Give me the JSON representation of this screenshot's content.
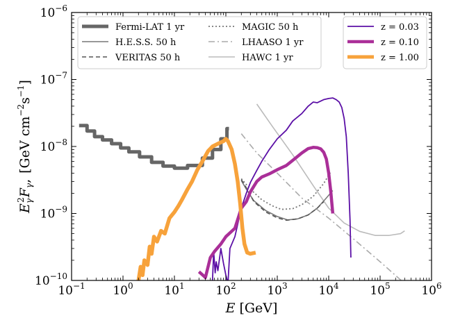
{
  "chart_data": {
    "type": "line",
    "xlabel_main": "E",
    "xlabel_unit": "[GeV]",
    "ylabel_main": "E",
    "ylabel_unit": "[GeV cm",
    "ylabel_unit2": "s",
    "ylabel_close": "]",
    "xscale": "log",
    "yscale": "log",
    "xlim": [
      0.1,
      1000000
    ],
    "ylim": [
      1e-10,
      1e-06
    ],
    "grid": false,
    "x_ticks": [
      {
        "value": 0.1,
        "base": "10",
        "exp": "−1"
      },
      {
        "value": 1,
        "base": "10",
        "exp": "0"
      },
      {
        "value": 10,
        "base": "10",
        "exp": "1"
      },
      {
        "value": 100,
        "base": "10",
        "exp": "2"
      },
      {
        "value": 1000,
        "base": "10",
        "exp": "3"
      },
      {
        "value": 10000,
        "base": "10",
        "exp": "4"
      },
      {
        "value": 100000,
        "base": "10",
        "exp": "5"
      },
      {
        "value": 1000000,
        "base": "10",
        "exp": "6"
      }
    ],
    "y_ticks": [
      {
        "value": 1e-10,
        "base": "10",
        "exp": "−10"
      },
      {
        "value": 1e-09,
        "base": "10",
        "exp": "−9"
      },
      {
        "value": 1e-08,
        "base": "10",
        "exp": "−8"
      },
      {
        "value": 1e-07,
        "base": "10",
        "exp": "−7"
      },
      {
        "value": 1e-06,
        "base": "10",
        "exp": "−6"
      }
    ],
    "legend_left": [
      {
        "label": "Fermi-LAT 1 yr",
        "series": "fermi"
      },
      {
        "label": "H.E.S.S. 50 h",
        "series": "hess"
      },
      {
        "label": "VERITAS 50 h",
        "series": "veritas"
      },
      {
        "label": "MAGIC 50 h",
        "series": "magic"
      },
      {
        "label": "LHAASO 1 yr",
        "series": "lhaaso"
      },
      {
        "label": "HAWC 1 yr",
        "series": "hawc"
      }
    ],
    "legend_right": [
      {
        "label": "z = 0.03",
        "series": "z003"
      },
      {
        "label": "z = 0.10",
        "series": "z010"
      },
      {
        "label": "z = 1.00",
        "series": "z100"
      }
    ],
    "series": [
      {
        "key": "fermi",
        "color": "#666666",
        "width": 5,
        "dash": "",
        "step": true,
        "points": [
          [
            0.14,
            2.05e-08
          ],
          [
            0.2,
            2.05e-08
          ],
          [
            0.2,
            1.7e-08
          ],
          [
            0.28,
            1.7e-08
          ],
          [
            0.28,
            1.4e-08
          ],
          [
            0.4,
            1.4e-08
          ],
          [
            0.4,
            1.25e-08
          ],
          [
            0.6,
            1.25e-08
          ],
          [
            0.6,
            1.1e-08
          ],
          [
            0.9,
            1.1e-08
          ],
          [
            0.9,
            9.5e-09
          ],
          [
            1.3,
            9.5e-09
          ],
          [
            1.3,
            8.3e-09
          ],
          [
            2.1,
            8.3e-09
          ],
          [
            2.1,
            7e-09
          ],
          [
            3.6,
            7e-09
          ],
          [
            3.6,
            5.8e-09
          ],
          [
            6,
            5.8e-09
          ],
          [
            6,
            5.1e-09
          ],
          [
            10,
            5.1e-09
          ],
          [
            10,
            4.75e-09
          ],
          [
            18,
            4.75e-09
          ],
          [
            18,
            5.2e-09
          ],
          [
            35,
            5.2e-09
          ],
          [
            35,
            6.7e-09
          ],
          [
            55,
            6.7e-09
          ],
          [
            55,
            9e-09
          ],
          [
            80,
            9e-09
          ],
          [
            80,
            1.3e-08
          ],
          [
            105,
            1.3e-08
          ],
          [
            105,
            1.85e-08
          ],
          [
            115,
            1.85e-08
          ]
        ]
      },
      {
        "key": "hess",
        "color": "#777777",
        "width": 1.6,
        "dash": "",
        "points": [
          [
            200,
            3.1e-09
          ],
          [
            250,
            2.3e-09
          ],
          [
            350,
            1.55e-09
          ],
          [
            600,
            1.1e-09
          ],
          [
            1000,
            9e-10
          ],
          [
            1600,
            8e-10
          ],
          [
            2500,
            8.3e-10
          ],
          [
            4000,
            9.5e-10
          ],
          [
            6000,
            1.2e-09
          ],
          [
            9000,
            1.7e-09
          ],
          [
            12000,
            2.2e-09
          ]
        ]
      },
      {
        "key": "veritas",
        "color": "#555555",
        "width": 1.6,
        "dash": "6,4",
        "points": [
          [
            200,
            3.2e-09
          ],
          [
            260,
            2.3e-09
          ],
          [
            350,
            1.5e-09
          ],
          [
            600,
            1.05e-09
          ],
          [
            1000,
            8.6e-10
          ],
          [
            1500,
            7.9e-10
          ],
          [
            2500,
            8.3e-10
          ],
          [
            4000,
            9.5e-10
          ],
          [
            6000,
            1.2e-09
          ],
          [
            8000,
            1.5e-09
          ]
        ]
      },
      {
        "key": "magic",
        "color": "#777777",
        "width": 1.8,
        "dash": "2,3",
        "points": [
          [
            200,
            3.3e-09
          ],
          [
            300,
            2.3e-09
          ],
          [
            500,
            1.6e-09
          ],
          [
            800,
            1.3e-09
          ],
          [
            1200,
            1.15e-09
          ],
          [
            2000,
            1.18e-09
          ],
          [
            3000,
            1.35e-09
          ],
          [
            5000,
            1.8e-09
          ],
          [
            8000,
            2.8e-09
          ],
          [
            11000,
            4.2e-09
          ]
        ]
      },
      {
        "key": "lhaaso",
        "color": "#aaaaaa",
        "width": 1.6,
        "dash": "9,4,2,4",
        "points": [
          [
            200,
            1.55e-08
          ],
          [
            400,
            8e-09
          ],
          [
            1000,
            4e-09
          ],
          [
            3000,
            1.7e-09
          ],
          [
            10000,
            8.5e-10
          ],
          [
            30000,
            4.2e-10
          ],
          [
            100000,
            1.9e-10
          ],
          [
            300000,
            9e-11
          ]
        ]
      },
      {
        "key": "hawc",
        "color": "#bbbbbb",
        "width": 1.6,
        "dash": "",
        "points": [
          [
            400,
            4.3e-08
          ],
          [
            800,
            2e-08
          ],
          [
            2000,
            7.5e-09
          ],
          [
            5000,
            2.6e-09
          ],
          [
            10000,
            1.2e-09
          ],
          [
            20000,
            7.2e-10
          ],
          [
            40000,
            5.4e-10
          ],
          [
            80000,
            4.7e-10
          ],
          [
            150000,
            4.7e-10
          ],
          [
            250000,
            5e-10
          ],
          [
            300000,
            5.5e-10
          ]
        ]
      },
      {
        "key": "z003",
        "color": "#5b0fa6",
        "width": 1.8,
        "dash": "",
        "points": [
          [
            55,
            1e-10
          ],
          [
            58,
            2.7e-10
          ],
          [
            62,
            1.3e-10
          ],
          [
            65,
            1.9e-10
          ],
          [
            70,
            1.4e-10
          ],
          [
            80,
            3e-10
          ],
          [
            90,
            1.8e-10
          ],
          [
            100,
            1.2e-10
          ],
          [
            110,
            9e-11
          ],
          [
            120,
            3e-10
          ],
          [
            150,
            4.5e-10
          ],
          [
            200,
            1.2e-09
          ],
          [
            250,
            2e-09
          ],
          [
            300,
            2.9e-09
          ],
          [
            400,
            4.4e-09
          ],
          [
            500,
            6e-09
          ],
          [
            700,
            9e-09
          ],
          [
            1000,
            1.3e-08
          ],
          [
            1500,
            1.75e-08
          ],
          [
            2000,
            2.4e-08
          ],
          [
            3000,
            3.1e-08
          ],
          [
            4000,
            4e-08
          ],
          [
            5000,
            4.6e-08
          ],
          [
            6000,
            4.5e-08
          ],
          [
            8000,
            5e-08
          ],
          [
            10000,
            5.2e-08
          ],
          [
            12000,
            5.3e-08
          ],
          [
            14000,
            5e-08
          ],
          [
            16000,
            4.6e-08
          ],
          [
            18000,
            3.8e-08
          ],
          [
            20000,
            2.6e-08
          ],
          [
            22000,
            1.4e-08
          ],
          [
            24000,
            4e-09
          ],
          [
            26000,
            8e-10
          ],
          [
            27000,
            2.2e-10
          ]
        ]
      },
      {
        "key": "z010",
        "color": "#aa2f98",
        "width": 4.5,
        "dash": "",
        "points": [
          [
            30,
            1.35e-10
          ],
          [
            38,
            1.15e-10
          ],
          [
            40,
            1.1e-10
          ],
          [
            50,
            2.2e-10
          ],
          [
            60,
            2.7e-10
          ],
          [
            80,
            3.5e-10
          ],
          [
            100,
            4.5e-10
          ],
          [
            150,
            6e-10
          ],
          [
            200,
            1.2e-09
          ],
          [
            250,
            1.5e-09
          ],
          [
            300,
            2.1e-09
          ],
          [
            400,
            3e-09
          ],
          [
            500,
            3.5e-09
          ],
          [
            700,
            3.9e-09
          ],
          [
            1000,
            4.5e-09
          ],
          [
            1500,
            5.2e-09
          ],
          [
            2000,
            6.2e-09
          ],
          [
            3000,
            8e-09
          ],
          [
            4000,
            9.3e-09
          ],
          [
            5000,
            9.7e-09
          ],
          [
            6000,
            9.6e-09
          ],
          [
            7000,
            9.2e-09
          ],
          [
            8000,
            8.2e-09
          ],
          [
            9000,
            6.5e-09
          ],
          [
            10000,
            4e-09
          ],
          [
            11000,
            2.1e-09
          ],
          [
            12000,
            1e-09
          ]
        ]
      },
      {
        "key": "z100",
        "color": "#f7a23b",
        "width": 5.5,
        "dash": "",
        "points": [
          [
            2,
            1e-10
          ],
          [
            2.2,
            1.6e-10
          ],
          [
            2.4,
            1.2e-10
          ],
          [
            2.6,
            2e-10
          ],
          [
            3,
            1.7e-10
          ],
          [
            3.3,
            3.2e-10
          ],
          [
            3.6,
            2.5e-10
          ],
          [
            4,
            4.5e-10
          ],
          [
            4.6,
            3.8e-10
          ],
          [
            5.5,
            5.5e-10
          ],
          [
            6.5,
            5e-10
          ],
          [
            8,
            8.5e-10
          ],
          [
            10,
            1.05e-09
          ],
          [
            12,
            1.3e-09
          ],
          [
            14,
            1.6e-09
          ],
          [
            18,
            2.3e-09
          ],
          [
            22,
            3e-09
          ],
          [
            28,
            4.5e-09
          ],
          [
            35,
            6e-09
          ],
          [
            45,
            8.5e-09
          ],
          [
            55,
            1e-08
          ],
          [
            70,
            1.1e-08
          ],
          [
            90,
            1.2e-08
          ],
          [
            100,
            1.3e-08
          ],
          [
            110,
            1.2e-08
          ],
          [
            130,
            9e-09
          ],
          [
            150,
            5.5e-09
          ],
          [
            170,
            3e-09
          ],
          [
            190,
            1.4e-09
          ],
          [
            210,
            6e-10
          ],
          [
            230,
            3.5e-10
          ],
          [
            260,
            2.6e-10
          ],
          [
            300,
            2.5e-10
          ],
          [
            380,
            2.6e-10
          ]
        ]
      }
    ]
  }
}
